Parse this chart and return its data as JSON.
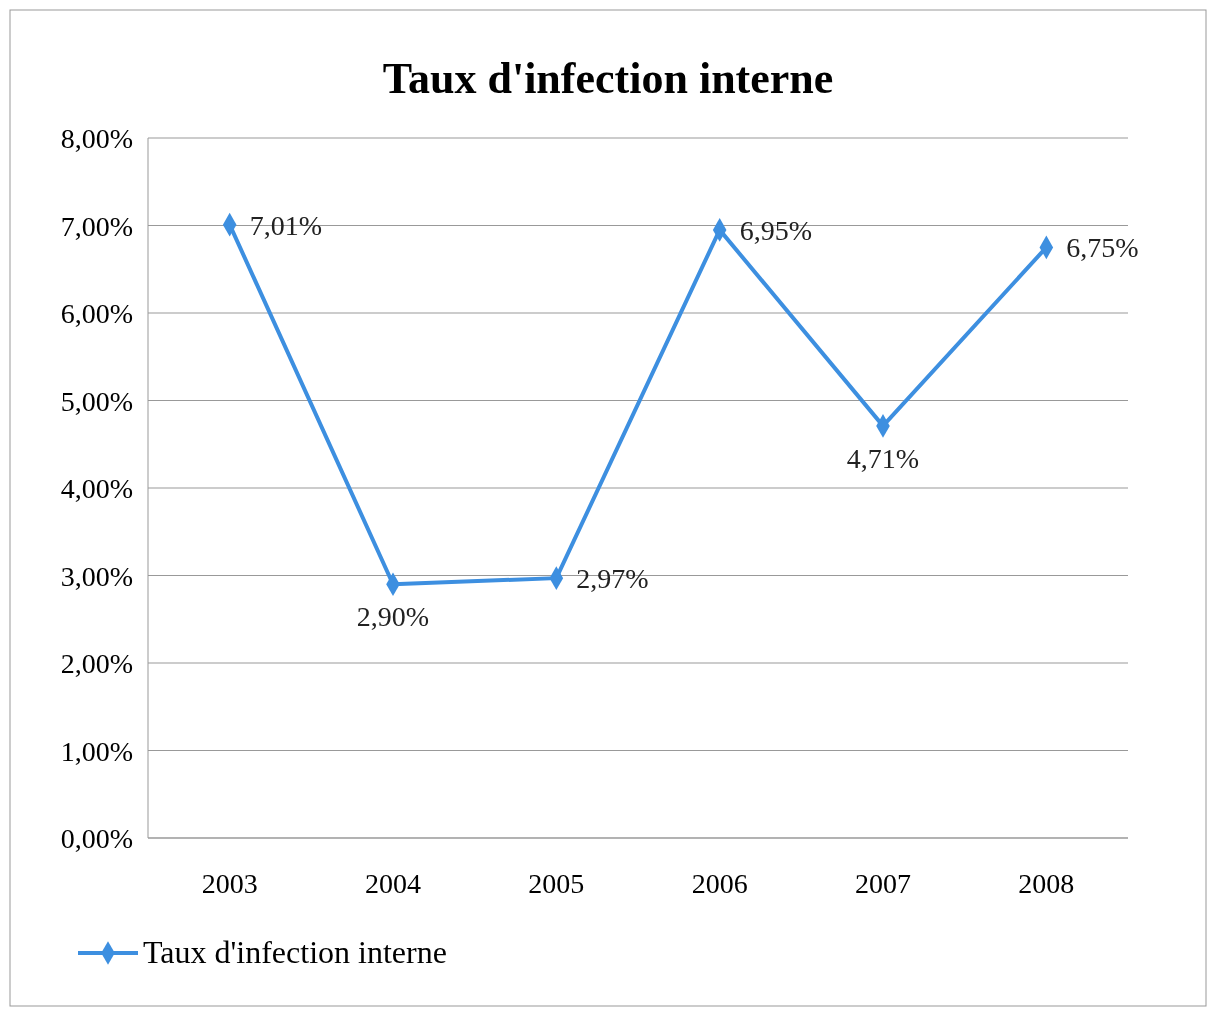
{
  "chart_data": {
    "type": "line",
    "title": "Taux d'infection interne",
    "categories": [
      "2003",
      "2004",
      "2005",
      "2006",
      "2007",
      "2008"
    ],
    "series": [
      {
        "name": "Taux d'infection interne",
        "color": "#3d8fe0",
        "values": [
          7.01,
          2.9,
          2.97,
          6.95,
          4.71,
          6.75
        ],
        "value_labels": [
          "7,01%",
          "2,90%",
          "2,97%",
          "6,95%",
          "4,71%",
          "6,75%"
        ]
      }
    ],
    "ylim": [
      0,
      8
    ],
    "yticks": [
      {
        "value": 0,
        "label": "0,00%"
      },
      {
        "value": 1,
        "label": "1,00%"
      },
      {
        "value": 2,
        "label": "2,00%"
      },
      {
        "value": 3,
        "label": "3,00%"
      },
      {
        "value": 4,
        "label": "4,00%"
      },
      {
        "value": 5,
        "label": "5,00%"
      },
      {
        "value": 6,
        "label": "6,00%"
      },
      {
        "value": 7,
        "label": "7,00%"
      },
      {
        "value": 8,
        "label": "8,00%"
      }
    ],
    "grid": "y",
    "legend": "bottom left",
    "marker": "diamond",
    "line_style": "solid"
  }
}
